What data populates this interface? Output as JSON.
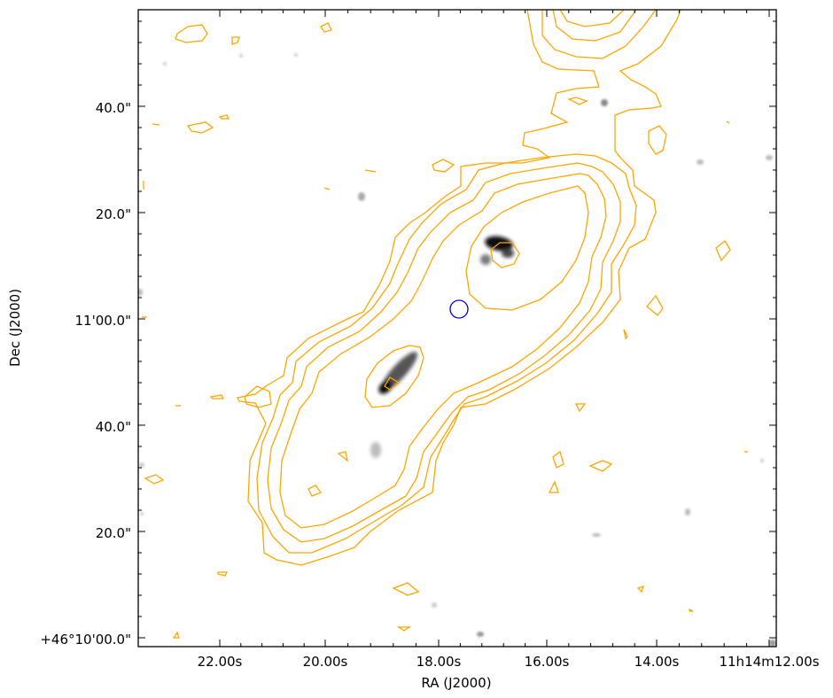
{
  "chart_data": {
    "type": "contour",
    "xlabel": "RA (J2000)",
    "ylabel": "Dec (J2000)",
    "x_ticks": [
      "22.00s",
      "20.00s",
      "18.00s",
      "16.00s",
      "14.00s",
      "11h14m12.00s"
    ],
    "y_ticks": [
      "+46°10'00.0\"",
      "20.0\"",
      "40.0\"",
      "11'00.0\"",
      "20.0\"",
      "40.0\""
    ],
    "contour_color": "#ffa500",
    "marker_color": "#0000cc",
    "background": "grayscale optical image with two dark galaxy sources",
    "markers": [
      {
        "shape": "circle",
        "position": "center of emission"
      }
    ]
  }
}
